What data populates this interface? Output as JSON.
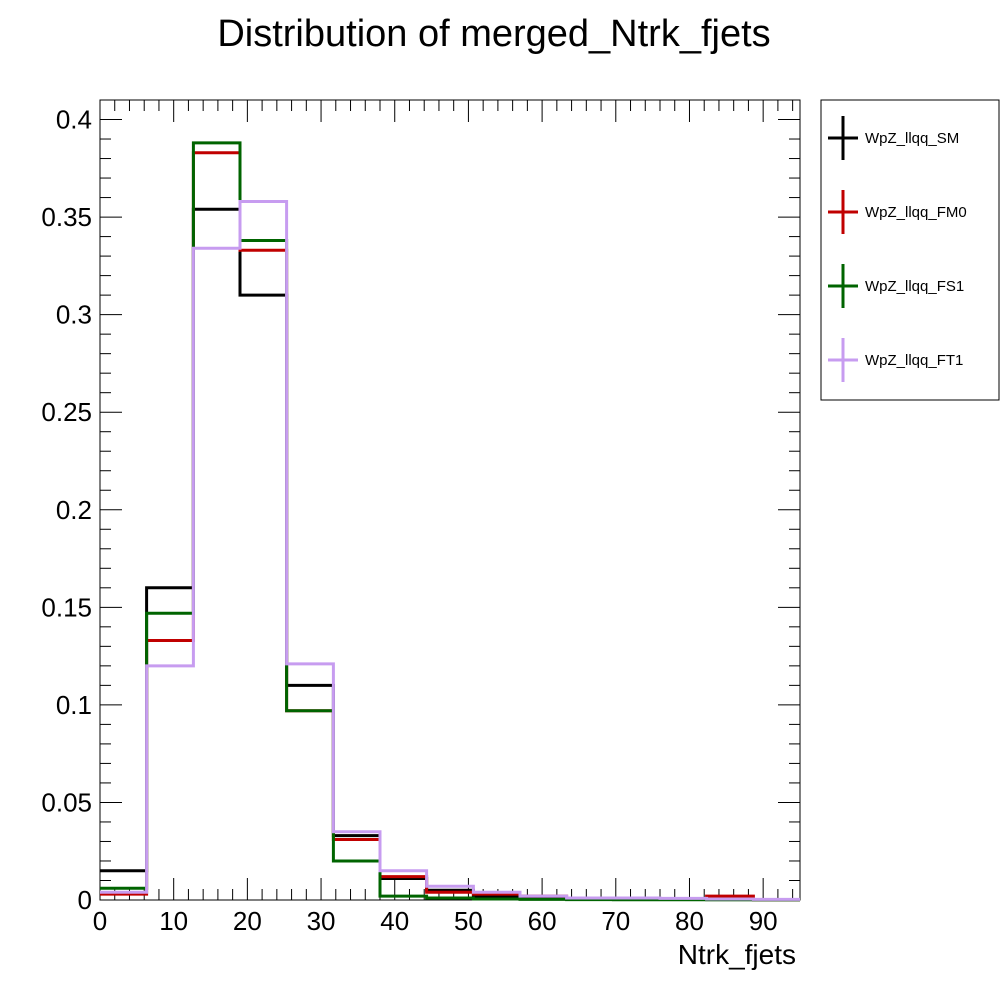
{
  "chart_data": {
    "type": "line",
    "title": "Distribution of merged_Ntrk_fjets",
    "xlabel": "Ntrk_fjets",
    "ylabel": "",
    "xlim": [
      0,
      95
    ],
    "ylim": [
      0,
      0.41
    ],
    "x_ticks": [
      0,
      10,
      20,
      30,
      40,
      50,
      60,
      70,
      80,
      90
    ],
    "y_ticks": [
      0,
      0.05,
      0.1,
      0.15,
      0.2,
      0.25,
      0.3,
      0.35,
      0.4
    ],
    "x_tick_labels": [
      "0",
      "10",
      "20",
      "30",
      "40",
      "50",
      "60",
      "70",
      "80",
      "90"
    ],
    "y_tick_labels": [
      "0",
      "0.05",
      "0.1",
      "0.15",
      "0.2",
      "0.25",
      "0.3",
      "0.35",
      "0.4"
    ],
    "bin_edges": [
      0,
      6.33,
      12.67,
      19,
      25.33,
      31.67,
      38,
      44.33,
      50.67,
      57,
      63.33,
      69.67,
      76,
      82.33,
      88.67,
      95
    ],
    "legend_position": "right",
    "series": [
      {
        "name": "WpZ_llqq_SM",
        "color": "#000000",
        "values": [
          0.015,
          0.16,
          0.354,
          0.31,
          0.11,
          0.033,
          0.011,
          0.005,
          0.002,
          0.001,
          0.0005,
          0.0005,
          0.0003,
          0.0002,
          0.0001
        ]
      },
      {
        "name": "WpZ_llqq_FM0",
        "color": "#c00000",
        "values": [
          0.003,
          0.133,
          0.383,
          0.333,
          0.097,
          0.031,
          0.012,
          0.004,
          0.003,
          0.002,
          0.0008,
          0.001,
          0.0005,
          0.002,
          0.0002
        ]
      },
      {
        "name": "WpZ_llqq_FS1",
        "color": "#006400",
        "values": [
          0.006,
          0.147,
          0.388,
          0.338,
          0.097,
          0.02,
          0.002,
          0.001,
          0.0005,
          0.0003,
          0.0002,
          0.0001,
          0.0001,
          0.0001,
          0.0001
        ]
      },
      {
        "name": "WpZ_llqq_FT1",
        "color": "#c79cf0",
        "values": [
          0.004,
          0.12,
          0.334,
          0.358,
          0.121,
          0.035,
          0.015,
          0.007,
          0.004,
          0.002,
          0.001,
          0.001,
          0.0008,
          0.0005,
          0.0003
        ]
      }
    ]
  }
}
